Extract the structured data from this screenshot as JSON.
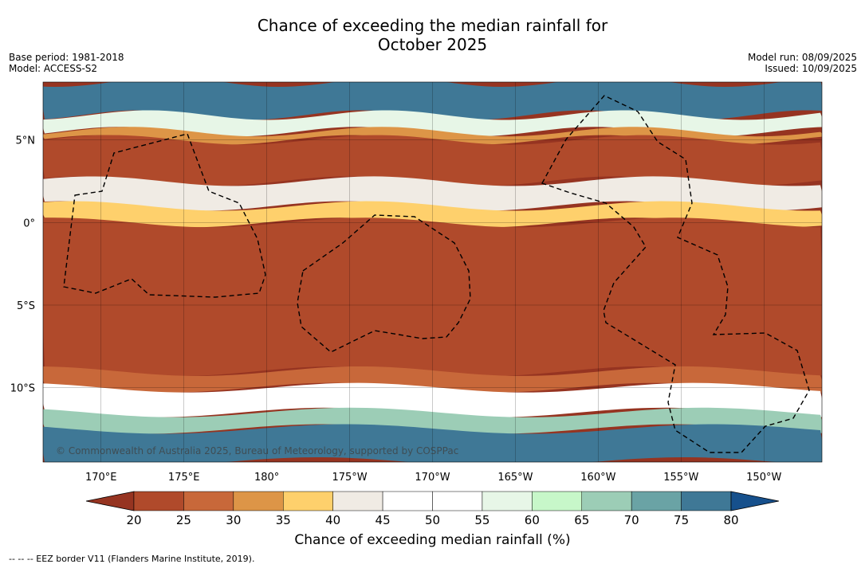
{
  "header": {
    "title_line1": "Chance of exceeding the median rainfall for",
    "title_line2": "October 2025",
    "base_period": "Base period: 1981-2018",
    "model": "Model: ACCESS-S2",
    "model_run": "Model run: 08/09/2025",
    "issued": "Issued: 10/09/2025"
  },
  "copyright": "© Commonwealth of Australia 2025, Bureau of Meteorology, supported by COSPPac",
  "footnote": "--  --  -- EEZ border V11 (Flanders Marine Institute, 2019).",
  "colors": {
    "levels": [
      "#963421",
      "#b04a2b",
      "#c8683a",
      "#dd9547",
      "#fed06c",
      "#f0ebe4",
      "#ffffff",
      "#ffffff",
      "#e7f6e7",
      "#c7f7c9",
      "#9ccdb6",
      "#6aa3a5",
      "#3f7896",
      "#16508c"
    ],
    "ocean_bg": "#963421"
  },
  "chart_data": {
    "type": "heatmap",
    "title": "Chance of exceeding the median rainfall for October 2025",
    "variable": "Chance of exceeding median rainfall (%)",
    "x_extent_deg": [
      166.5,
      213.5
    ],
    "y_extent_deg": [
      -14.5,
      8.5
    ],
    "x_ticks": [
      {
        "lon": 170,
        "label": "170°E"
      },
      {
        "lon": 175,
        "label": "175°E"
      },
      {
        "lon": 180,
        "label": "180°"
      },
      {
        "lon": 185,
        "label": "175°W"
      },
      {
        "lon": 190,
        "label": "170°W"
      },
      {
        "lon": 195,
        "label": "165°W"
      },
      {
        "lon": 200,
        "label": "160°W"
      },
      {
        "lon": 205,
        "label": "155°W"
      },
      {
        "lon": 210,
        "label": "150°W"
      }
    ],
    "y_ticks": [
      {
        "lat": 5,
        "label": "5°N"
      },
      {
        "lat": 0,
        "label": "0°"
      },
      {
        "lat": -5,
        "label": "5°S"
      },
      {
        "lat": -10,
        "label": "10°S"
      }
    ],
    "colorbar": {
      "label": "Chance of exceeding median rainfall (%)",
      "ticks": [
        20,
        25,
        30,
        35,
        40,
        45,
        50,
        55,
        60,
        65,
        70,
        75,
        80
      ],
      "extend": "both"
    },
    "bands_pct": [
      {
        "lat_north": 8.5,
        "lat_south": 6.5,
        "value": 75
      },
      {
        "lat_north": 6.5,
        "lat_south": 5.5,
        "value": 55
      },
      {
        "lat_north": 5.5,
        "lat_south": 5.0,
        "value": 30
      },
      {
        "lat_north": 5.0,
        "lat_south": 2.5,
        "value": 20
      },
      {
        "lat_north": 2.5,
        "lat_south": 1.0,
        "value": 42
      },
      {
        "lat_north": 1.0,
        "lat_south": 0.0,
        "value": 35
      },
      {
        "lat_north": 0.0,
        "lat_south": -9.0,
        "value": 20
      },
      {
        "lat_north": -9.0,
        "lat_south": -10.0,
        "value": 28
      },
      {
        "lat_north": -10.0,
        "lat_south": -11.5,
        "value": 50
      },
      {
        "lat_north": -11.5,
        "lat_south": -12.5,
        "value": 65
      },
      {
        "lat_north": -12.5,
        "lat_south": -14.5,
        "value": 78
      }
    ],
    "grid": true,
    "eez_border": "dashed"
  }
}
